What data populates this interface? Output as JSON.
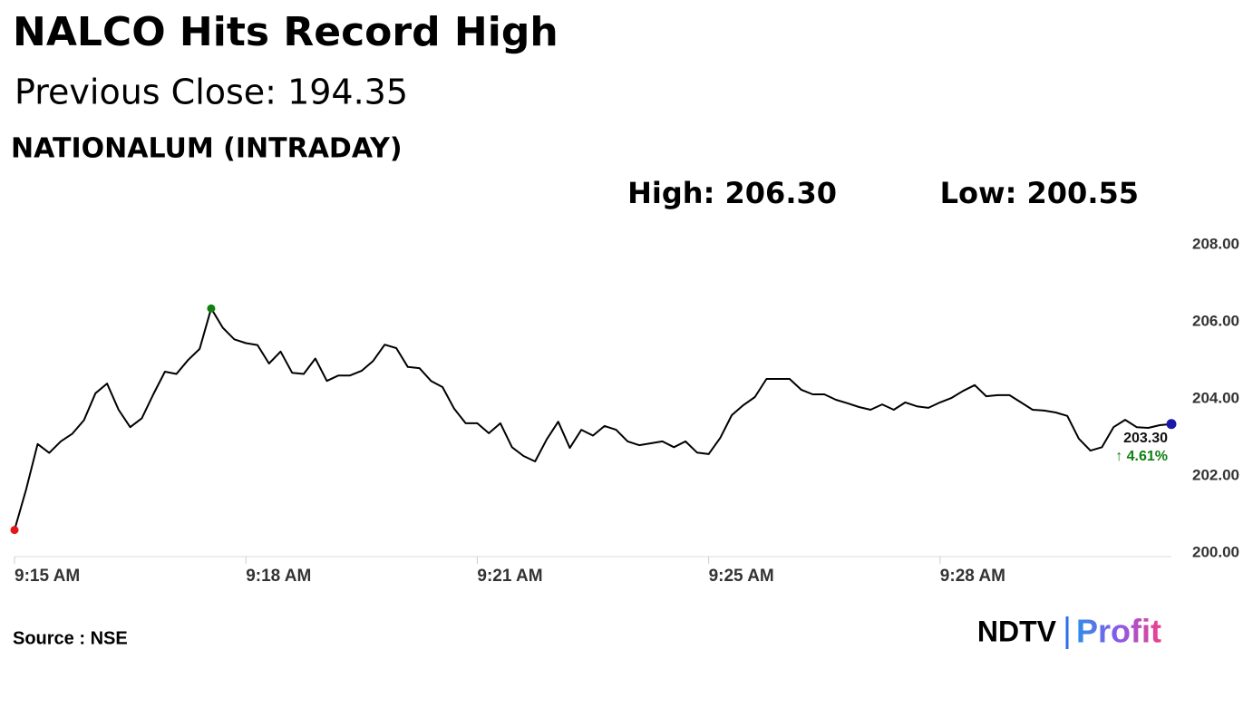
{
  "chart_data": {
    "type": "line",
    "title": "NALCO Hits Record High",
    "subtitle": "Previous Close: 194.35",
    "chart_label": "NATIONALUM (INTRADAY)",
    "high_label": "High: 206.30",
    "low_label": "Low: 200.55",
    "annotations": [
      "203.30",
      "↑ 4.61%"
    ],
    "source": "Source : NSE",
    "brand": [
      "NDTV",
      "Profit"
    ],
    "color": "#000000",
    "low_color": "#e3161b",
    "high_color": "#118011",
    "last_color": "#1a1aa8",
    "categories": [
      "9:15 AM",
      null,
      null,
      null,
      null,
      null,
      null,
      null,
      null,
      null,
      null,
      null,
      null,
      null,
      null,
      null,
      null,
      null,
      null,
      null,
      "9:18 AM",
      null,
      null,
      null,
      null,
      null,
      null,
      null,
      null,
      null,
      null,
      null,
      null,
      null,
      null,
      null,
      null,
      null,
      null,
      null,
      "9:21 AM",
      null,
      null,
      null,
      null,
      null,
      null,
      null,
      null,
      null,
      null,
      null,
      null,
      null,
      null,
      null,
      null,
      null,
      null,
      null,
      "9:25 AM",
      null,
      null,
      null,
      null,
      null,
      null,
      null,
      null,
      null,
      null,
      null,
      null,
      null,
      null,
      null,
      null,
      null,
      null,
      null,
      "9:28 AM",
      null,
      null,
      null,
      null,
      null,
      null,
      null,
      null,
      null,
      null,
      null,
      null,
      null,
      null,
      null,
      null,
      null,
      null,
      null,
      null
    ],
    "values": [
      200.55,
      201.6,
      202.78,
      202.55,
      202.85,
      203.05,
      203.4,
      204.1,
      204.35,
      203.67,
      203.22,
      203.45,
      204.07,
      204.66,
      204.6,
      204.96,
      205.25,
      206.3,
      205.8,
      205.5,
      205.4,
      205.35,
      204.87,
      205.18,
      204.63,
      204.6,
      205.0,
      204.42,
      204.56,
      204.56,
      204.68,
      204.94,
      205.36,
      205.27,
      204.78,
      204.75,
      204.42,
      204.26,
      203.7,
      203.32,
      203.32,
      203.06,
      203.32,
      202.7,
      202.47,
      202.33,
      202.9,
      203.36,
      202.68,
      203.15,
      203.0,
      203.25,
      203.15,
      202.85,
      202.75,
      202.8,
      202.85,
      202.7,
      202.85,
      202.56,
      202.52,
      202.94,
      203.53,
      203.79,
      204.0,
      204.47,
      204.47,
      204.47,
      204.19,
      204.07,
      204.07,
      203.93,
      203.84,
      203.74,
      203.67,
      203.81,
      203.67,
      203.86,
      203.76,
      203.72,
      203.86,
      203.98,
      204.16,
      204.31,
      204.02,
      204.05,
      204.05,
      203.86,
      203.67,
      203.65,
      203.6,
      203.51,
      202.92,
      202.61,
      202.7,
      203.22,
      203.41,
      203.22,
      203.2,
      203.27,
      203.3
    ],
    "ylim": [
      200,
      208
    ],
    "yticks": [
      {
        "value": 200,
        "label": "200.00"
      },
      {
        "value": 202,
        "label": "202.00"
      },
      {
        "value": 204,
        "label": "204.00"
      },
      {
        "value": 206,
        "label": "206.00"
      },
      {
        "value": 208,
        "label": "208.00"
      }
    ]
  }
}
